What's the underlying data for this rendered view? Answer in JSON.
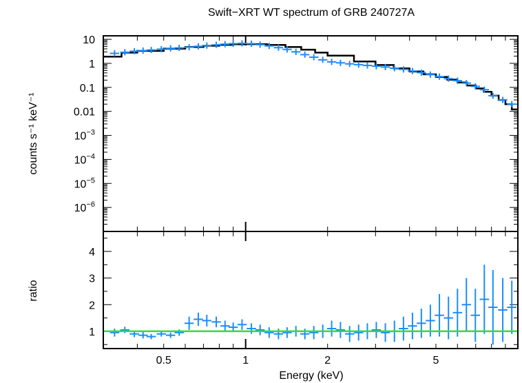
{
  "chart_data": [
    {
      "panel": "top",
      "type": "scatter",
      "title": "Swift−XRT WT spectrum of GRB 240727A",
      "ylabel": "counts s⁻¹ keV⁻¹",
      "xscale": "log",
      "yscale": "log",
      "xlim": [
        0.3,
        10
      ],
      "ylim": [
        1e-07,
        14
      ],
      "y_ticks": [
        {
          "value": 10,
          "base": "10",
          "exp": ""
        },
        {
          "value": 1,
          "base": "1",
          "exp": ""
        },
        {
          "value": 0.1,
          "base": "0.1",
          "exp": ""
        },
        {
          "value": 0.01,
          "base": "0.01",
          "exp": ""
        },
        {
          "value": 0.001,
          "base": "10",
          "exp": "−3"
        },
        {
          "value": 0.0001,
          "base": "10",
          "exp": "−4"
        },
        {
          "value": 1e-05,
          "base": "10",
          "exp": "−5"
        },
        {
          "value": 1e-06,
          "base": "10",
          "exp": "−6"
        }
      ],
      "series": [
        {
          "role": "data",
          "color": "#1a8cff",
          "x": [
            0.33,
            0.36,
            0.39,
            0.42,
            0.45,
            0.49,
            0.53,
            0.57,
            0.62,
            0.67,
            0.72,
            0.78,
            0.84,
            0.9,
            0.97,
            1.05,
            1.13,
            1.22,
            1.32,
            1.42,
            1.53,
            1.65,
            1.78,
            1.92,
            2.07,
            2.23,
            2.41,
            2.6,
            2.8,
            3.02,
            3.26,
            3.52,
            3.8,
            4.1,
            4.42,
            4.77,
            5.15,
            5.56,
            6.0,
            6.47,
            6.98,
            7.53,
            8.1,
            8.8,
            9.5
          ],
          "y": [
            2.6,
            2.9,
            3.2,
            3.4,
            3.6,
            3.9,
            4.2,
            4.4,
            4.7,
            5.1,
            5.5,
            5.9,
            6.3,
            6.6,
            6.8,
            6.6,
            6.0,
            5.3,
            4.5,
            3.8,
            3.0,
            2.3,
            1.8,
            1.4,
            1.15,
            1.05,
            0.95,
            0.88,
            0.82,
            0.76,
            0.7,
            0.63,
            0.56,
            0.48,
            0.41,
            0.34,
            0.28,
            0.23,
            0.19,
            0.15,
            0.11,
            0.08,
            0.045,
            0.03,
            0.02
          ]
        },
        {
          "role": "model",
          "color": "#000000",
          "x": [
            0.3,
            0.35,
            0.4,
            0.5,
            0.6,
            0.7,
            0.8,
            0.9,
            1.0,
            1.2,
            1.4,
            1.6,
            1.8,
            2.0,
            2.5,
            3.0,
            3.5,
            4.0,
            4.5,
            5.0,
            5.5,
            6.0,
            6.5,
            7.0,
            7.5,
            8.0,
            8.5,
            9.0,
            9.5,
            10.0
          ],
          "y": [
            1.9,
            2.8,
            3.3,
            4.1,
            4.8,
            5.4,
            5.9,
            6.2,
            6.3,
            5.8,
            4.8,
            3.7,
            2.8,
            2.1,
            1.2,
            0.85,
            0.62,
            0.46,
            0.35,
            0.27,
            0.21,
            0.16,
            0.12,
            0.09,
            0.065,
            0.045,
            0.03,
            0.02,
            0.012,
            0.01
          ]
        }
      ]
    },
    {
      "panel": "bottom",
      "type": "scatter",
      "xlabel": "Energy (keV)",
      "ylabel": "ratio",
      "xscale": "log",
      "xlim": [
        0.3,
        10
      ],
      "ylim": [
        0.35,
        4.75
      ],
      "x_ticks": [
        {
          "value": 0.5,
          "label": "0.5"
        },
        {
          "value": 1,
          "label": "1"
        },
        {
          "value": 2,
          "label": "2"
        },
        {
          "value": 5,
          "label": "5"
        }
      ],
      "y_ticks": [
        1,
        2,
        3,
        4
      ],
      "reference_line": {
        "y": 1,
        "color": "#33dd33"
      },
      "series": [
        {
          "role": "ratio",
          "color": "#1a8cff",
          "x": [
            0.33,
            0.36,
            0.39,
            0.42,
            0.45,
            0.49,
            0.53,
            0.57,
            0.62,
            0.67,
            0.72,
            0.78,
            0.84,
            0.9,
            0.97,
            1.05,
            1.13,
            1.22,
            1.32,
            1.42,
            1.53,
            1.65,
            1.78,
            1.92,
            2.07,
            2.23,
            2.41,
            2.6,
            2.8,
            3.02,
            3.26,
            3.52,
            3.8,
            4.1,
            4.42,
            4.77,
            5.15,
            5.56,
            6.0,
            6.47,
            6.98,
            7.53,
            8.1,
            8.8,
            9.5
          ],
          "y": [
            0.95,
            1.05,
            0.9,
            0.85,
            0.8,
            0.9,
            0.85,
            0.95,
            1.3,
            1.45,
            1.4,
            1.35,
            1.2,
            1.15,
            1.25,
            1.1,
            1.05,
            0.95,
            0.9,
            0.95,
            1.0,
            0.9,
            0.95,
            1.0,
            1.1,
            1.05,
            0.9,
            0.95,
            1.0,
            1.05,
            0.95,
            1.0,
            1.1,
            1.2,
            1.3,
            1.4,
            1.6,
            1.5,
            1.7,
            2.0,
            1.6,
            2.2,
            1.9,
            1.8,
            1.9
          ],
          "yerr": [
            0.15,
            0.12,
            0.12,
            0.12,
            0.1,
            0.1,
            0.1,
            0.12,
            0.25,
            0.25,
            0.22,
            0.2,
            0.2,
            0.18,
            0.2,
            0.2,
            0.2,
            0.2,
            0.2,
            0.2,
            0.2,
            0.2,
            0.25,
            0.25,
            0.3,
            0.3,
            0.3,
            0.3,
            0.3,
            0.3,
            0.35,
            0.4,
            0.45,
            0.5,
            0.55,
            0.6,
            0.8,
            0.8,
            0.9,
            1.0,
            1.0,
            1.3,
            1.4,
            1.2,
            1.0
          ]
        }
      ]
    }
  ]
}
